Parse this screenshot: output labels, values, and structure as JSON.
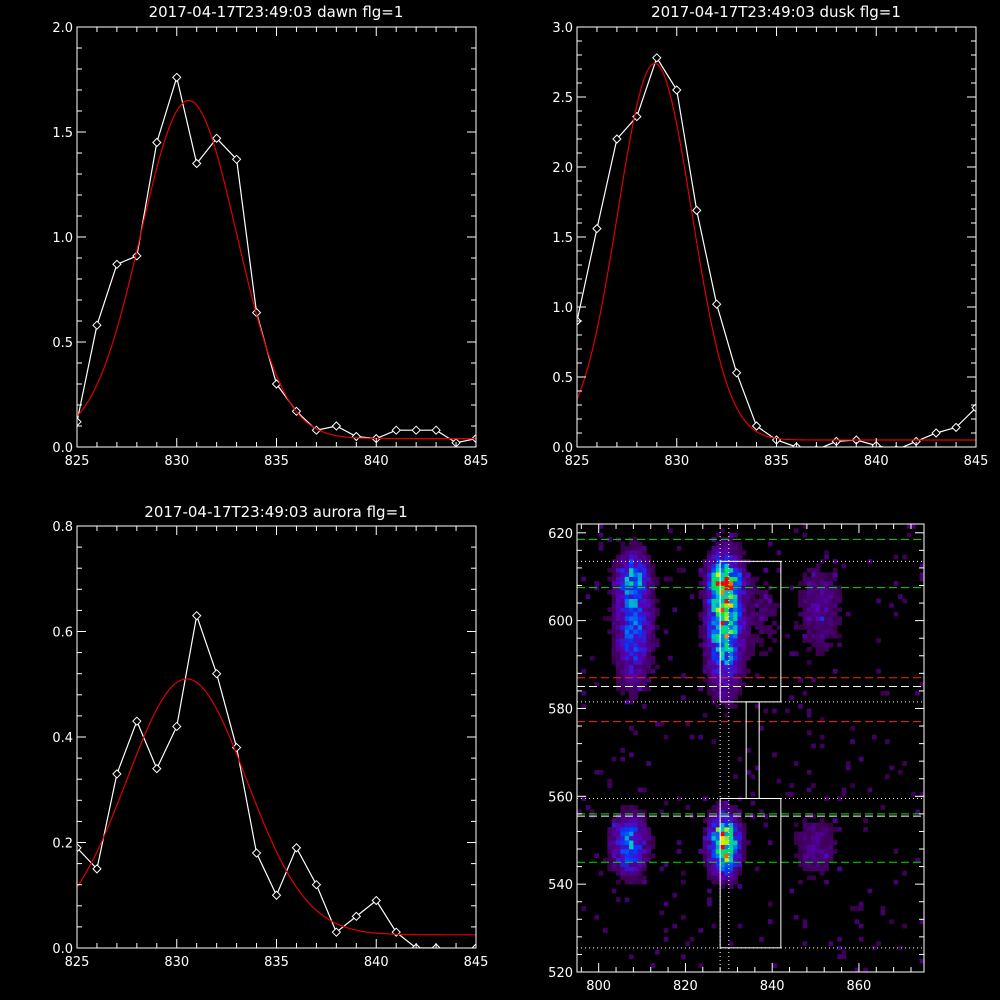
{
  "chart_data": [
    {
      "type": "line",
      "title": "2017-04-17T23:49:03 dawn flg=1",
      "xlim": [
        825,
        845
      ],
      "ylim": [
        0,
        2.0
      ],
      "xticks": [
        825,
        830,
        835,
        840,
        845
      ],
      "yticks": [
        0.0,
        0.5,
        1.0,
        1.5,
        2.0
      ],
      "ytick_decimals": 1,
      "series": [
        {
          "style": "data-diamonds",
          "color": "#ffffff",
          "x": [
            825,
            826,
            827,
            828,
            829,
            830,
            831,
            832,
            833,
            834,
            835,
            836,
            837,
            838,
            839,
            840,
            841,
            842,
            843,
            844,
            845
          ],
          "y": [
            0.12,
            0.58,
            0.87,
            0.91,
            1.45,
            1.76,
            1.35,
            1.47,
            1.37,
            0.64,
            0.3,
            0.17,
            0.08,
            0.1,
            0.05,
            0.04,
            0.08,
            0.08,
            0.08,
            0.02,
            0.04
          ]
        },
        {
          "style": "fit",
          "color": "#e00000",
          "gauss": {
            "amp": 1.61,
            "center": 830.6,
            "sigma": 2.4,
            "baseline": 0.04
          }
        }
      ]
    },
    {
      "type": "line",
      "title": "2017-04-17T23:49:03 dusk flg=1",
      "xlim": [
        825,
        845
      ],
      "ylim": [
        0,
        3.0
      ],
      "xticks": [
        825,
        830,
        835,
        840,
        845
      ],
      "yticks": [
        0.0,
        0.5,
        1.0,
        1.5,
        2.0,
        2.5,
        3.0
      ],
      "ytick_decimals": 1,
      "series": [
        {
          "style": "data-diamonds",
          "color": "#ffffff",
          "x": [
            825,
            826,
            827,
            828,
            829,
            830,
            831,
            832,
            833,
            834,
            835,
            836,
            837,
            838,
            839,
            840,
            841,
            842,
            843,
            844,
            845
          ],
          "y": [
            0.9,
            1.56,
            2.2,
            2.36,
            2.78,
            2.55,
            1.69,
            1.02,
            0.53,
            0.15,
            0.05,
            0.0,
            -0.02,
            0.04,
            0.05,
            0.01,
            -0.02,
            0.04,
            0.1,
            0.14,
            0.28
          ]
        },
        {
          "style": "fit",
          "color": "#e00000",
          "gauss": {
            "amp": 2.69,
            "center": 828.9,
            "sigma": 1.85,
            "baseline": 0.05
          }
        }
      ]
    },
    {
      "type": "line",
      "title": "2017-04-17T23:49:03 aurora flg=1",
      "xlim": [
        825,
        845
      ],
      "ylim": [
        0,
        0.8
      ],
      "xticks": [
        825,
        830,
        835,
        840,
        845
      ],
      "yticks": [
        0.0,
        0.2,
        0.4,
        0.6,
        0.8
      ],
      "ytick_decimals": 1,
      "series": [
        {
          "style": "data-diamonds",
          "color": "#ffffff",
          "x": [
            825,
            826,
            827,
            828,
            829,
            830,
            831,
            832,
            833,
            834,
            835,
            836,
            837,
            838,
            839,
            840,
            841,
            842,
            843,
            844,
            845
          ],
          "y": [
            0.19,
            0.15,
            0.33,
            0.43,
            0.34,
            0.42,
            0.63,
            0.52,
            0.38,
            0.18,
            0.1,
            0.19,
            0.12,
            0.03,
            0.06,
            0.09,
            0.03,
            0.0,
            0.0,
            -0.01,
            0.0
          ]
        },
        {
          "style": "fit",
          "color": "#e00000",
          "gauss": {
            "amp": 0.485,
            "center": 830.5,
            "sigma": 3.0,
            "baseline": 0.025
          }
        }
      ]
    },
    {
      "type": "heatmap",
      "title": "",
      "xlim": [
        795,
        875
      ],
      "ylim": [
        520,
        622
      ],
      "xticks": [
        800,
        820,
        840,
        860
      ],
      "yticks": [
        520,
        540,
        560,
        580,
        600,
        620
      ],
      "ytick_decimals": 0,
      "blobs": [
        {
          "x": 829,
          "y": 600,
          "sx": 2.6,
          "sy": 9.5,
          "amp": 0.85
        },
        {
          "x": 829,
          "y": 609,
          "sx": 2.5,
          "sy": 3.0,
          "amp": 0.5
        },
        {
          "x": 808,
          "y": 600,
          "sx": 2.8,
          "sy": 9.5,
          "amp": 0.5
        },
        {
          "x": 808,
          "y": 610,
          "sx": 2.5,
          "sy": 3.0,
          "amp": 0.3
        },
        {
          "x": 851,
          "y": 603,
          "sx": 3.5,
          "sy": 7.0,
          "amp": 0.22
        },
        {
          "x": 829,
          "y": 549,
          "sx": 2.3,
          "sy": 4.5,
          "amp": 1.0
        },
        {
          "x": 807,
          "y": 549,
          "sx": 2.8,
          "sy": 4.5,
          "amp": 0.55
        },
        {
          "x": 850,
          "y": 549,
          "sx": 3.5,
          "sy": 5.0,
          "amp": 0.2
        },
        {
          "x": 838,
          "y": 600,
          "sx": 3.0,
          "sy": 8.0,
          "amp": 0.12
        }
      ],
      "hlines": [
        {
          "y": 618.5,
          "color": "#00e000",
          "style": "dashed"
        },
        {
          "y": 607.5,
          "color": "#00e000",
          "style": "dashed"
        },
        {
          "y": 587,
          "color": "#ff2020",
          "style": "dashed"
        },
        {
          "y": 577,
          "color": "#ff2020",
          "style": "dashed"
        },
        {
          "y": 556,
          "color": "#00e000",
          "style": "dashed"
        },
        {
          "y": 545,
          "color": "#00e000",
          "style": "dashed"
        },
        {
          "y": 585,
          "color": "#ffffff",
          "style": "dashed"
        },
        {
          "y": 555.5,
          "color": "#ffffff",
          "style": "dashed"
        },
        {
          "y": 613.5,
          "color": "#ffffff",
          "style": "dotted"
        },
        {
          "y": 581.5,
          "color": "#ffffff",
          "style": "dotted"
        },
        {
          "y": 559.5,
          "color": "#ffffff",
          "style": "dotted"
        },
        {
          "y": 525.5,
          "color": "#ffffff",
          "style": "dotted"
        }
      ],
      "vlines": [
        {
          "x": 828,
          "color": "#ffffff",
          "style": "dotted"
        },
        {
          "x": 830,
          "color": "#ffffff",
          "style": "dotted"
        }
      ],
      "boxes": [
        {
          "x0": 828,
          "x1": 842,
          "y0": 581.5,
          "y1": 613.5
        },
        {
          "x0": 828,
          "x1": 842,
          "y0": 525.5,
          "y1": 559.5
        },
        {
          "x0": 834,
          "x1": 837,
          "y0": 559.5,
          "y1": 581.5
        }
      ]
    }
  ]
}
